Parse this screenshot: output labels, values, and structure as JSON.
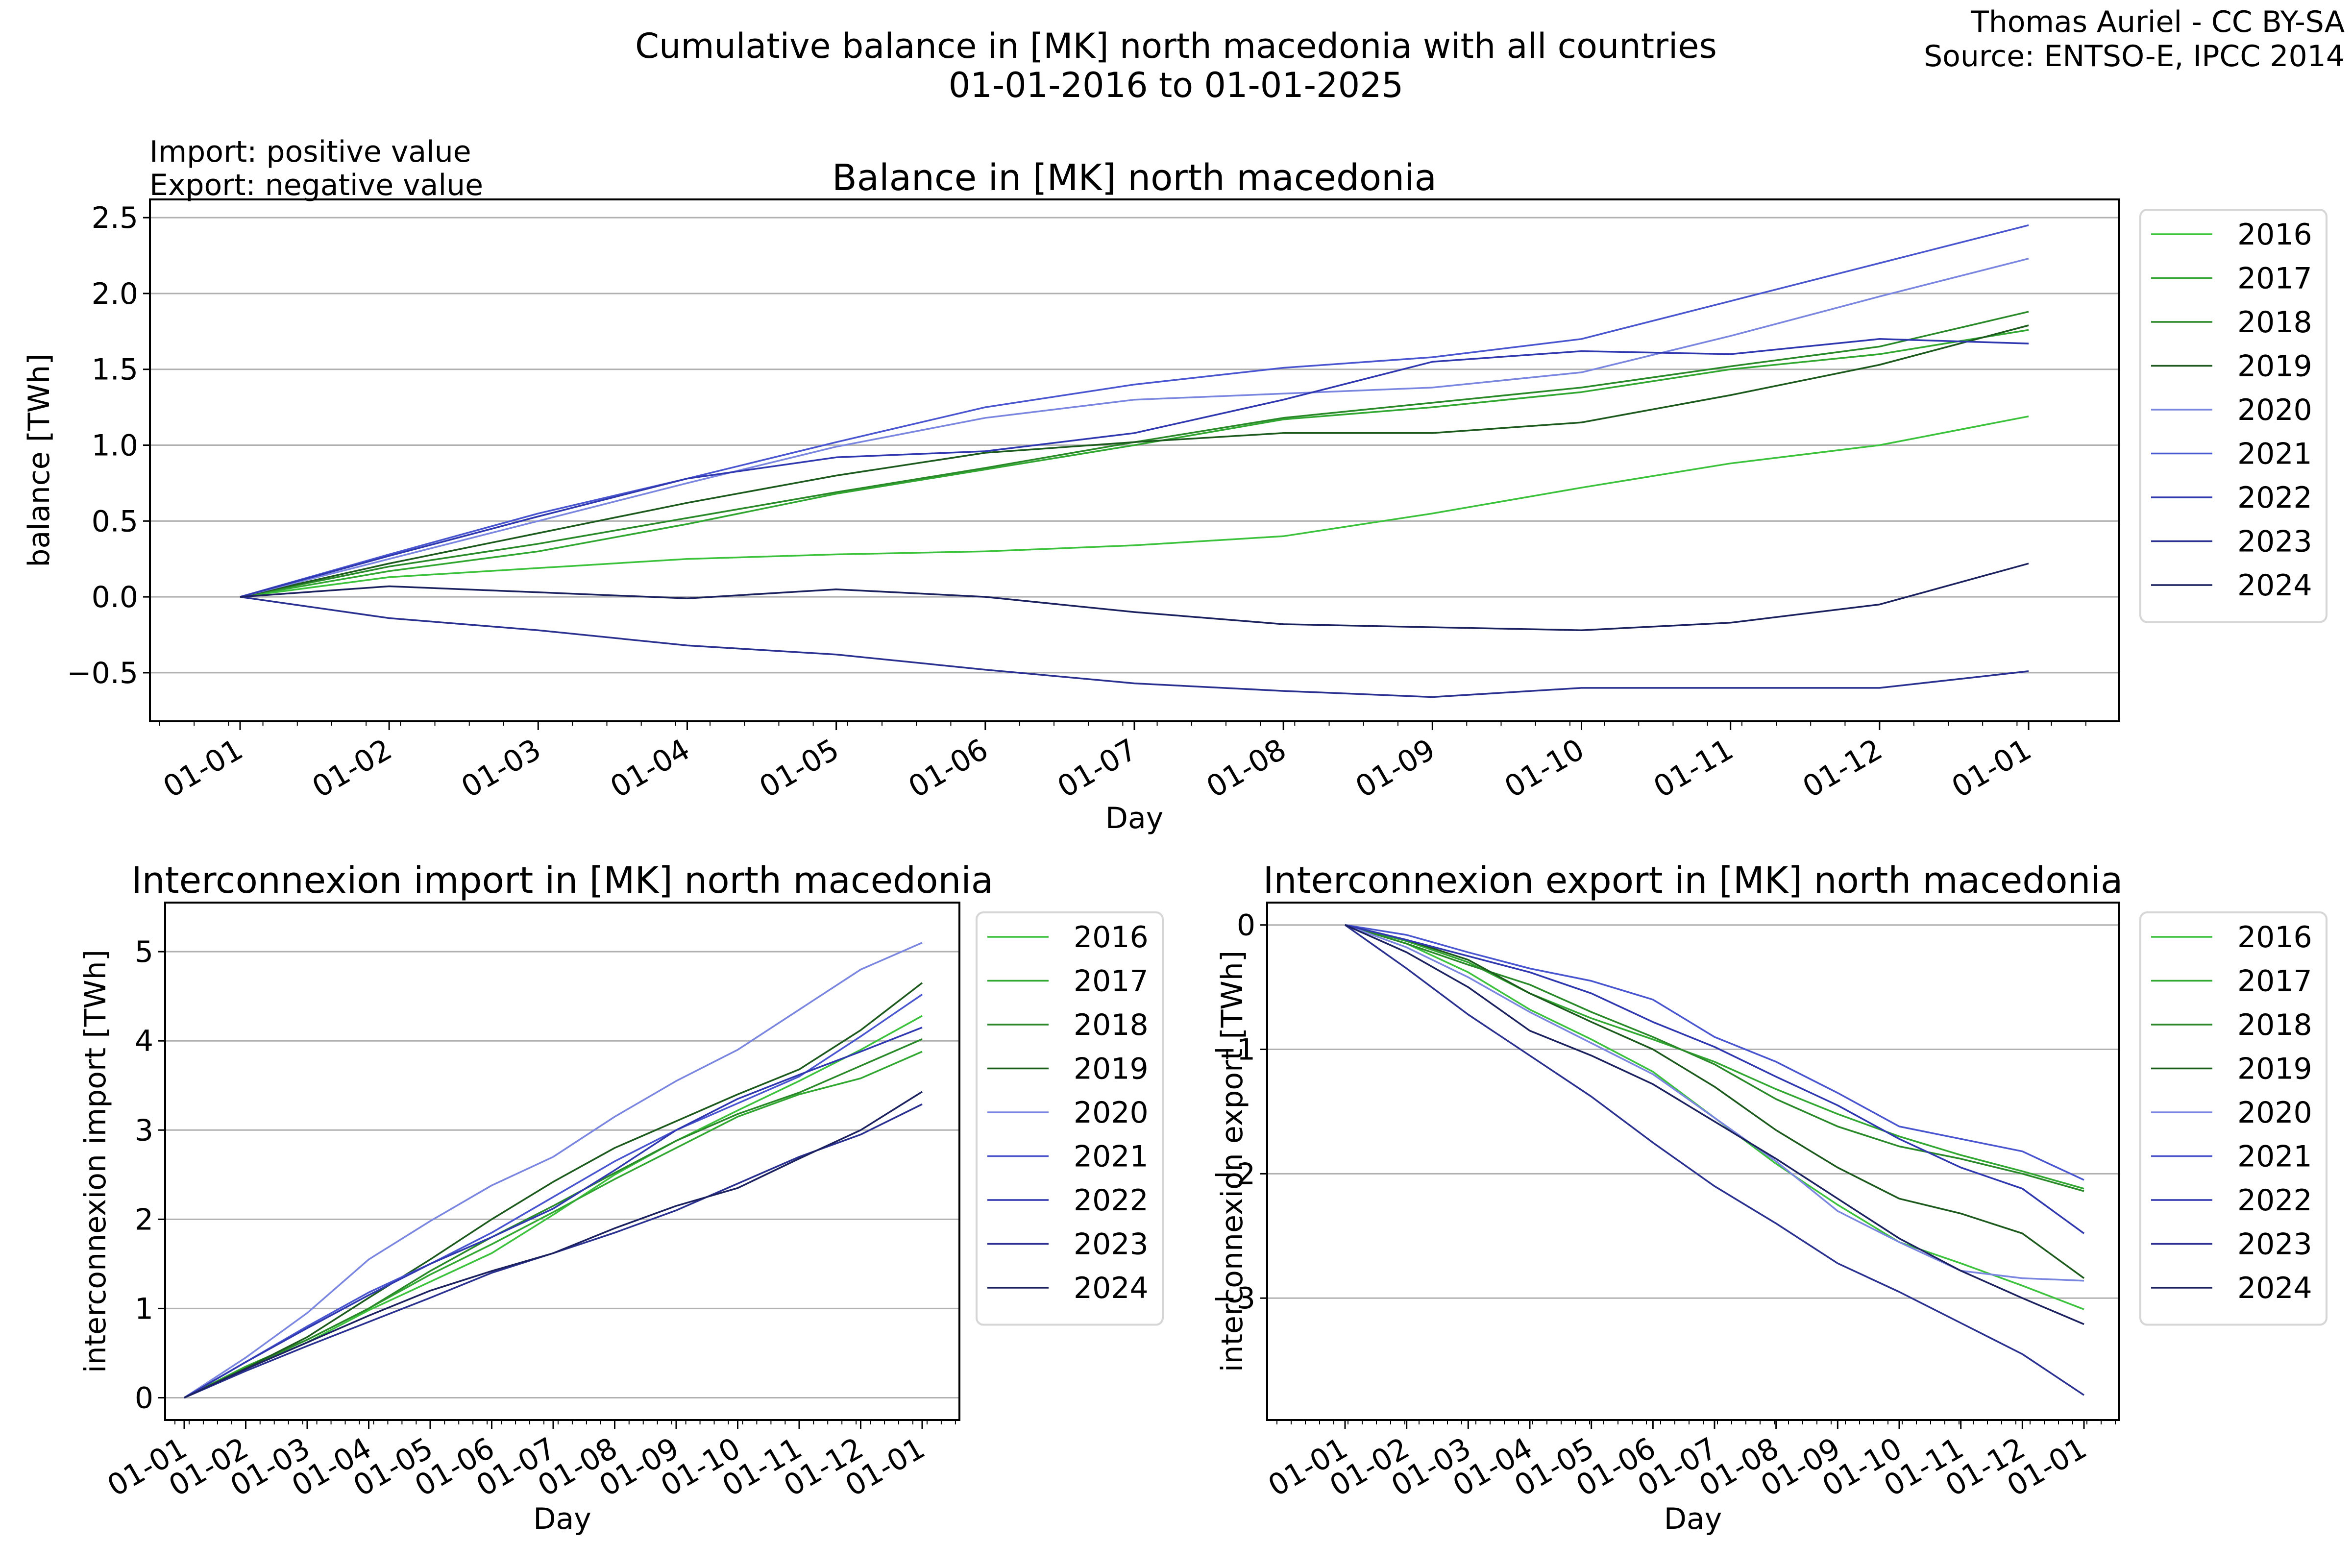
{
  "figure": {
    "title_line1": "Cumulative balance in [MK] north macedonia with all countries",
    "title_line2": "01-01-2016 to 01-01-2025",
    "credit_line1": "Thomas Auriel - CC BY-SA",
    "credit_line2": "Source: ENTSO-E, IPCC 2014",
    "note_line1": "Import: positive value",
    "note_line2": "Export: negative value"
  },
  "colors": {
    "2016": "#3cc23c",
    "2017": "#32a832",
    "2018": "#2a8a2a",
    "2019": "#1d5a1d",
    "2020": "#7b86e0",
    "2021": "#4a56d0",
    "2022": "#3038b0",
    "2023": "#2a3190",
    "2024": "#1c2260"
  },
  "chart_data": [
    {
      "id": "balance",
      "type": "line",
      "title": "Balance in [MK] north macedonia",
      "xlabel": "Day",
      "ylabel": "balance [TWh]",
      "xticks": [
        "01-01",
        "01-02",
        "01-03",
        "01-04",
        "01-05",
        "01-06",
        "01-07",
        "01-08",
        "01-09",
        "01-10",
        "01-11",
        "01-12",
        "01-01"
      ],
      "yticks": [
        -0.5,
        0.0,
        0.5,
        1.0,
        1.5,
        2.0,
        2.5
      ],
      "ytick_labels": [
        "−0.5",
        "0.0",
        "0.5",
        "1.0",
        "1.5",
        "2.0",
        "2.5"
      ],
      "ylim": [
        -0.82,
        2.62
      ],
      "grid": true,
      "legend_position": "outside-right",
      "x_months": [
        0,
        1,
        2,
        3,
        4,
        5,
        6,
        7,
        8,
        9,
        10,
        11,
        12
      ],
      "series": [
        {
          "name": "2016",
          "values": [
            0,
            0.13,
            0.19,
            0.25,
            0.28,
            0.3,
            0.34,
            0.4,
            0.55,
            0.72,
            0.88,
            1.0,
            1.19
          ]
        },
        {
          "name": "2017",
          "values": [
            0,
            0.17,
            0.3,
            0.48,
            0.68,
            0.84,
            1.0,
            1.17,
            1.25,
            1.35,
            1.5,
            1.6,
            1.76
          ]
        },
        {
          "name": "2018",
          "values": [
            0,
            0.2,
            0.35,
            0.52,
            0.69,
            0.85,
            1.02,
            1.18,
            1.28,
            1.38,
            1.52,
            1.65,
            1.88
          ]
        },
        {
          "name": "2019",
          "values": [
            0,
            0.22,
            0.42,
            0.62,
            0.8,
            0.95,
            1.02,
            1.08,
            1.08,
            1.15,
            1.33,
            1.53,
            1.79
          ]
        },
        {
          "name": "2020",
          "values": [
            0,
            0.25,
            0.5,
            0.75,
            0.99,
            1.18,
            1.3,
            1.34,
            1.38,
            1.48,
            1.72,
            1.98,
            2.23
          ]
        },
        {
          "name": "2021",
          "values": [
            0,
            0.28,
            0.55,
            0.78,
            1.02,
            1.25,
            1.4,
            1.51,
            1.58,
            1.7,
            1.95,
            2.2,
            2.45
          ]
        },
        {
          "name": "2022",
          "values": [
            0,
            0.27,
            0.53,
            0.78,
            0.92,
            0.96,
            1.08,
            1.3,
            1.55,
            1.62,
            1.6,
            1.7,
            1.67
          ]
        },
        {
          "name": "2023",
          "values": [
            0,
            -0.14,
            -0.22,
            -0.32,
            -0.38,
            -0.48,
            -0.57,
            -0.62,
            -0.66,
            -0.6,
            -0.6,
            -0.6,
            -0.49
          ]
        },
        {
          "name": "2024",
          "values": [
            0,
            0.07,
            0.03,
            -0.01,
            0.05,
            0.0,
            -0.1,
            -0.18,
            -0.2,
            -0.22,
            -0.17,
            -0.05,
            0.22
          ]
        }
      ]
    },
    {
      "id": "import",
      "type": "line",
      "title": "Interconnexion import in [MK] north macedonia",
      "xlabel": "Day",
      "ylabel": "interconnexion import [TWh]",
      "xticks": [
        "01-01",
        "01-02",
        "01-03",
        "01-04",
        "01-05",
        "01-06",
        "01-07",
        "01-08",
        "01-09",
        "01-10",
        "01-11",
        "01-12",
        "01-01"
      ],
      "yticks": [
        0,
        1,
        2,
        3,
        4,
        5
      ],
      "ytick_labels": [
        "0",
        "1",
        "2",
        "3",
        "4",
        "5"
      ],
      "ylim": [
        -0.25,
        5.55
      ],
      "grid": true,
      "legend_position": "outside-right",
      "x_months": [
        0,
        1,
        2,
        3,
        4,
        5,
        6,
        7,
        8,
        9,
        10,
        11,
        12
      ],
      "series": [
        {
          "name": "2016",
          "values": [
            0,
            0.33,
            0.62,
            0.98,
            1.3,
            1.62,
            2.05,
            2.5,
            2.88,
            3.22,
            3.55,
            3.9,
            4.28
          ]
        },
        {
          "name": "2017",
          "values": [
            0,
            0.35,
            0.65,
            1.0,
            1.38,
            1.72,
            2.08,
            2.45,
            2.8,
            3.15,
            3.4,
            3.58,
            3.88
          ]
        },
        {
          "name": "2018",
          "values": [
            0,
            0.33,
            0.65,
            1.0,
            1.42,
            1.8,
            2.15,
            2.52,
            2.88,
            3.18,
            3.42,
            3.72,
            4.02
          ]
        },
        {
          "name": "2019",
          "values": [
            0,
            0.33,
            0.68,
            1.12,
            1.55,
            2.0,
            2.42,
            2.8,
            3.1,
            3.4,
            3.68,
            4.12,
            4.65
          ]
        },
        {
          "name": "2020",
          "values": [
            0,
            0.45,
            0.95,
            1.55,
            1.98,
            2.38,
            2.7,
            3.15,
            3.55,
            3.9,
            4.35,
            4.8,
            5.1
          ]
        },
        {
          "name": "2021",
          "values": [
            0,
            0.4,
            0.8,
            1.18,
            1.5,
            1.85,
            2.25,
            2.65,
            3.0,
            3.3,
            3.6,
            4.05,
            4.52
          ]
        },
        {
          "name": "2022",
          "values": [
            0,
            0.4,
            0.78,
            1.15,
            1.5,
            1.8,
            2.12,
            2.55,
            3.0,
            3.35,
            3.62,
            3.88,
            4.15
          ]
        },
        {
          "name": "2023",
          "values": [
            0,
            0.3,
            0.58,
            0.85,
            1.12,
            1.4,
            1.62,
            1.85,
            2.1,
            2.4,
            2.7,
            2.95,
            3.29
          ]
        },
        {
          "name": "2024",
          "values": [
            0,
            0.32,
            0.62,
            0.92,
            1.2,
            1.42,
            1.62,
            1.9,
            2.15,
            2.35,
            2.68,
            3.0,
            3.43
          ]
        }
      ]
    },
    {
      "id": "export",
      "type": "line",
      "title": "Interconnexion export in [MK] north macedonia",
      "xlabel": "Day",
      "ylabel": "interconnexion export [TWh]",
      "xticks": [
        "01-01",
        "01-02",
        "01-03",
        "01-04",
        "01-05",
        "01-06",
        "01-07",
        "01-08",
        "01-09",
        "01-10",
        "01-11",
        "01-12",
        "01-01"
      ],
      "yticks": [
        -3,
        -2,
        -1,
        0
      ],
      "ytick_labels": [
        "−3",
        "−2",
        "−1",
        "0"
      ],
      "ylim": [
        -3.98,
        0.18
      ],
      "grid": true,
      "legend_position": "outside-right",
      "x_months": [
        0,
        1,
        2,
        3,
        4,
        5,
        6,
        7,
        8,
        9,
        10,
        11,
        12
      ],
      "series": [
        {
          "name": "2016",
          "values": [
            0,
            -0.15,
            -0.38,
            -0.68,
            -0.92,
            -1.18,
            -1.55,
            -1.92,
            -2.25,
            -2.55,
            -2.72,
            -2.9,
            -3.09
          ]
        },
        {
          "name": "2017",
          "values": [
            0,
            -0.13,
            -0.3,
            -0.55,
            -0.75,
            -0.92,
            -1.1,
            -1.32,
            -1.52,
            -1.7,
            -1.85,
            -1.98,
            -2.12
          ]
        },
        {
          "name": "2018",
          "values": [
            0,
            -0.15,
            -0.32,
            -0.48,
            -0.7,
            -0.9,
            -1.12,
            -1.4,
            -1.62,
            -1.78,
            -1.88,
            -2.0,
            -2.14
          ]
        },
        {
          "name": "2019",
          "values": [
            0,
            -0.12,
            -0.28,
            -0.55,
            -0.78,
            -1.0,
            -1.3,
            -1.65,
            -1.95,
            -2.2,
            -2.32,
            -2.48,
            -2.84
          ]
        },
        {
          "name": "2020",
          "values": [
            0,
            -0.18,
            -0.42,
            -0.7,
            -0.95,
            -1.2,
            -1.55,
            -1.9,
            -2.3,
            -2.55,
            -2.78,
            -2.84,
            -2.86
          ]
        },
        {
          "name": "2021",
          "values": [
            0,
            -0.08,
            -0.22,
            -0.35,
            -0.45,
            -0.6,
            -0.9,
            -1.1,
            -1.35,
            -1.62,
            -1.72,
            -1.82,
            -2.05
          ]
        },
        {
          "name": "2022",
          "values": [
            0,
            -0.12,
            -0.25,
            -0.38,
            -0.55,
            -0.78,
            -0.98,
            -1.22,
            -1.45,
            -1.72,
            -1.95,
            -2.12,
            -2.48
          ]
        },
        {
          "name": "2023",
          "values": [
            0,
            -0.35,
            -0.72,
            -1.05,
            -1.38,
            -1.75,
            -2.1,
            -2.4,
            -2.72,
            -2.95,
            -3.2,
            -3.45,
            -3.78
          ]
        },
        {
          "name": "2024",
          "values": [
            0,
            -0.22,
            -0.5,
            -0.85,
            -1.05,
            -1.28,
            -1.58,
            -1.88,
            -2.2,
            -2.52,
            -2.78,
            -3.0,
            -3.21
          ]
        }
      ]
    }
  ]
}
